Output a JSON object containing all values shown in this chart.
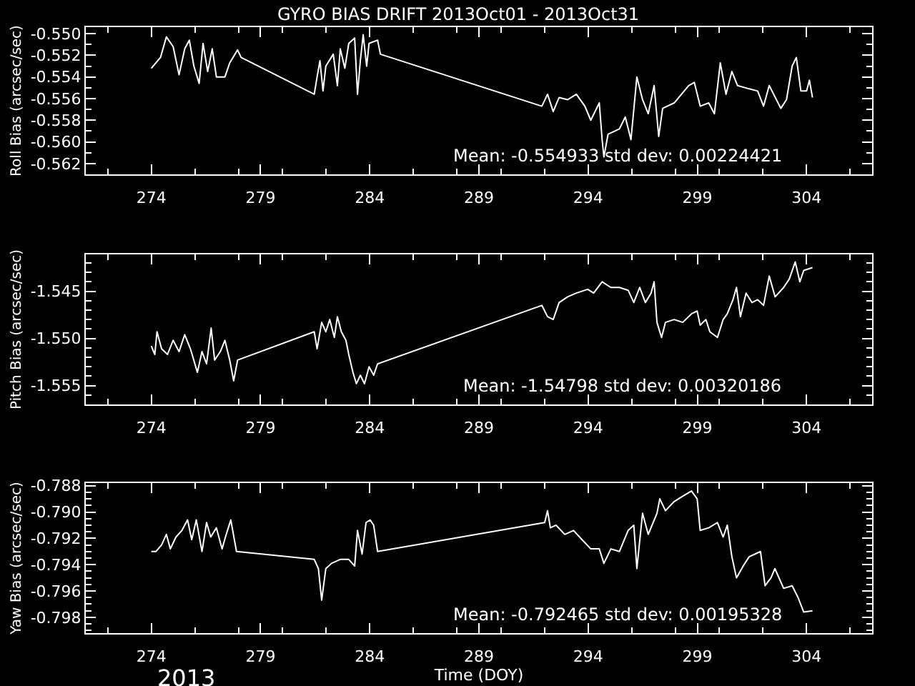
{
  "chart_data": [
    {
      "type": "line",
      "title": "GYRO BIAS DRIFT 2013Oct01 - 2013Oct31",
      "ylabel": "Roll Bias (arcsec/sec)",
      "xlim": [
        271,
        307
      ],
      "xticks": [
        274,
        279,
        284,
        289,
        294,
        299,
        304
      ],
      "ylim": [
        -0.563,
        -0.5494
      ],
      "yticks": [
        {
          "value": -0.55,
          "label": "-0.550"
        },
        {
          "value": -0.552,
          "label": "-0.552"
        },
        {
          "value": -0.554,
          "label": "-0.554"
        },
        {
          "value": -0.556,
          "label": "-0.556"
        },
        {
          "value": -0.558,
          "label": "-0.558"
        },
        {
          "value": -0.56,
          "label": "-0.560"
        },
        {
          "value": -0.562,
          "label": "-0.562"
        }
      ],
      "annotations": [
        "Mean: -0.554933 std dev: 0.00224421"
      ],
      "series": [
        {
          "color": "#ffffff",
          "x": [
            274.0,
            274.42,
            274.69,
            275.0,
            275.27,
            275.53,
            275.74,
            275.95,
            276.19,
            276.37,
            276.58,
            276.79,
            276.98,
            277.37,
            277.59,
            277.95,
            278.11,
            281.46,
            281.59,
            281.72,
            281.86,
            281.99,
            282.33,
            282.52,
            282.65,
            282.86,
            283.04,
            283.31,
            283.44,
            283.57,
            283.7,
            283.86,
            283.97,
            284.36,
            284.49,
            291.88,
            292.14,
            292.4,
            292.67,
            293.06,
            293.46,
            293.85,
            294.12,
            294.51,
            294.64,
            294.72,
            294.91,
            295.43,
            295.7,
            295.96,
            296.23,
            296.49,
            296.75,
            297.02,
            297.23,
            297.41,
            297.94,
            298.6,
            298.86,
            299.13,
            299.52,
            299.78,
            300.05,
            300.31,
            300.58,
            300.84,
            301.37,
            301.76,
            302.03,
            302.29,
            302.82,
            303.08,
            303.34,
            303.53,
            303.74,
            304.0,
            304.13,
            304.27
          ],
          "values": [
            -0.5532,
            -0.5522,
            -0.5503,
            -0.5512,
            -0.5538,
            -0.5514,
            -0.5506,
            -0.553,
            -0.5546,
            -0.5509,
            -0.5535,
            -0.5514,
            -0.554,
            -0.554,
            -0.5527,
            -0.5515,
            -0.5522,
            -0.5556,
            -0.554,
            -0.5525,
            -0.5553,
            -0.553,
            -0.5519,
            -0.5548,
            -0.5514,
            -0.5532,
            -0.5509,
            -0.5504,
            -0.5556,
            -0.5525,
            -0.5501,
            -0.553,
            -0.5509,
            -0.5506,
            -0.5519,
            -0.5567,
            -0.5556,
            -0.5572,
            -0.5559,
            -0.5561,
            -0.5556,
            -0.5567,
            -0.558,
            -0.5564,
            -0.5598,
            -0.5614,
            -0.5593,
            -0.5588,
            -0.5577,
            -0.5598,
            -0.554,
            -0.5561,
            -0.5574,
            -0.5548,
            -0.5595,
            -0.5569,
            -0.5564,
            -0.5548,
            -0.5545,
            -0.5567,
            -0.5564,
            -0.5574,
            -0.5527,
            -0.5556,
            -0.5535,
            -0.5548,
            -0.5551,
            -0.5553,
            -0.5567,
            -0.5548,
            -0.5569,
            -0.5561,
            -0.553,
            -0.5522,
            -0.5553,
            -0.5553,
            -0.5543,
            -0.5559
          ]
        }
      ]
    },
    {
      "type": "line",
      "ylabel": "Pitch Bias (arcsec/sec)",
      "xlim": [
        271,
        307
      ],
      "xticks": [
        274,
        279,
        284,
        289,
        294,
        299,
        304
      ],
      "ylim": [
        -1.557,
        -1.5411
      ],
      "yticks": [
        {
          "value": -1.545,
          "label": "-1.545"
        },
        {
          "value": -1.55,
          "label": "-1.550"
        },
        {
          "value": -1.555,
          "label": "-1.555"
        }
      ],
      "annotations": [
        "Mean: -1.54798 std dev: 0.00320186"
      ],
      "series": [
        {
          "color": "#ffffff",
          "x": [
            274.0,
            274.16,
            274.26,
            274.47,
            274.74,
            275.0,
            275.27,
            275.53,
            275.79,
            276.11,
            276.32,
            276.53,
            276.74,
            276.9,
            277.16,
            277.37,
            277.59,
            277.77,
            277.95,
            281.46,
            281.59,
            281.8,
            281.99,
            282.17,
            282.38,
            282.52,
            282.7,
            282.91,
            283.04,
            283.23,
            283.39,
            283.57,
            283.76,
            283.97,
            284.18,
            284.36,
            291.88,
            292.14,
            292.4,
            292.67,
            293.06,
            293.46,
            293.98,
            294.25,
            294.64,
            295.04,
            295.43,
            295.83,
            296.09,
            296.36,
            296.62,
            296.88,
            297.02,
            297.15,
            297.36,
            297.54,
            297.94,
            298.33,
            298.73,
            298.99,
            299.13,
            299.39,
            299.57,
            299.92,
            300.18,
            300.37,
            300.63,
            300.79,
            300.97,
            301.23,
            301.5,
            301.76,
            302.03,
            302.29,
            302.56,
            302.95,
            303.21,
            303.48,
            303.69,
            303.87,
            304.27
          ],
          "values": [
            -1.5508,
            -1.5517,
            -1.5493,
            -1.5511,
            -1.5517,
            -1.5502,
            -1.5514,
            -1.5496,
            -1.5511,
            -1.5536,
            -1.5514,
            -1.5527,
            -1.5489,
            -1.5523,
            -1.5514,
            -1.5502,
            -1.5523,
            -1.5545,
            -1.5523,
            -1.5493,
            -1.5511,
            -1.5483,
            -1.5493,
            -1.548,
            -1.5499,
            -1.5477,
            -1.5493,
            -1.5502,
            -1.5517,
            -1.5536,
            -1.5548,
            -1.5539,
            -1.5548,
            -1.553,
            -1.5539,
            -1.5527,
            -1.5465,
            -1.5477,
            -1.548,
            -1.5462,
            -1.5456,
            -1.5452,
            -1.5448,
            -1.5452,
            -1.544,
            -1.5446,
            -1.5446,
            -1.5449,
            -1.5462,
            -1.5446,
            -1.5462,
            -1.5452,
            -1.544,
            -1.5483,
            -1.5499,
            -1.5483,
            -1.548,
            -1.5483,
            -1.5474,
            -1.5471,
            -1.5486,
            -1.548,
            -1.5493,
            -1.5499,
            -1.548,
            -1.5474,
            -1.5459,
            -1.5446,
            -1.5477,
            -1.5452,
            -1.5462,
            -1.5459,
            -1.5465,
            -1.5434,
            -1.5456,
            -1.5446,
            -1.5437,
            -1.5419,
            -1.544,
            -1.5428,
            -1.5425
          ]
        }
      ]
    },
    {
      "type": "line",
      "ylabel": "Yaw Bias (arcsec/sec)",
      "xlabel": "Time (DOY)",
      "xlim": [
        271,
        307
      ],
      "xticks": [
        274,
        279,
        284,
        289,
        294,
        299,
        304
      ],
      "ylim": [
        -0.7992,
        -0.7878
      ],
      "yticks": [
        {
          "value": -0.788,
          "label": "-0.788"
        },
        {
          "value": -0.79,
          "label": "-0.790"
        },
        {
          "value": -0.792,
          "label": "-0.792"
        },
        {
          "value": -0.794,
          "label": "-0.794"
        },
        {
          "value": -0.796,
          "label": "-0.796"
        },
        {
          "value": -0.798,
          "label": "-0.798"
        }
      ],
      "annotations": [
        "Mean: -0.792465 std dev: 0.00195328",
        "2013"
      ],
      "series": [
        {
          "color": "#ffffff",
          "x": [
            274.0,
            274.21,
            274.47,
            274.69,
            274.87,
            275.13,
            275.4,
            275.66,
            275.85,
            276.06,
            276.32,
            276.53,
            276.72,
            276.98,
            277.24,
            277.43,
            277.64,
            277.9,
            281.46,
            281.65,
            281.8,
            281.99,
            282.25,
            282.65,
            283.04,
            283.31,
            283.44,
            283.65,
            283.83,
            284.02,
            284.18,
            284.36,
            292.01,
            292.14,
            292.27,
            292.53,
            292.93,
            293.33,
            293.72,
            294.12,
            294.51,
            294.72,
            295.04,
            295.43,
            295.83,
            296.09,
            296.23,
            296.49,
            296.75,
            297.15,
            297.28,
            297.54,
            297.94,
            298.33,
            298.73,
            298.99,
            299.13,
            299.52,
            299.92,
            300.18,
            300.37,
            300.58,
            300.79,
            301.1,
            301.37,
            301.63,
            301.89,
            302.1,
            302.37,
            302.55,
            302.95,
            303.34,
            303.61,
            303.87,
            304.27
          ],
          "values": [
            -0.793,
            -0.793,
            -0.7925,
            -0.7917,
            -0.7928,
            -0.7919,
            -0.7914,
            -0.7906,
            -0.7921,
            -0.7906,
            -0.793,
            -0.7908,
            -0.7919,
            -0.7912,
            -0.7928,
            -0.7917,
            -0.7906,
            -0.793,
            -0.7936,
            -0.7943,
            -0.7967,
            -0.7943,
            -0.7939,
            -0.7936,
            -0.7936,
            -0.7941,
            -0.7914,
            -0.7932,
            -0.7908,
            -0.7906,
            -0.791,
            -0.793,
            -0.7908,
            -0.7899,
            -0.7912,
            -0.791,
            -0.7917,
            -0.7914,
            -0.7921,
            -0.7928,
            -0.7928,
            -0.7939,
            -0.7928,
            -0.793,
            -0.7914,
            -0.791,
            -0.7943,
            -0.7901,
            -0.7917,
            -0.7901,
            -0.789,
            -0.7899,
            -0.7892,
            -0.7888,
            -0.7884,
            -0.789,
            -0.7914,
            -0.7912,
            -0.7908,
            -0.7919,
            -0.791,
            -0.7934,
            -0.795,
            -0.7941,
            -0.7934,
            -0.7932,
            -0.793,
            -0.7956,
            -0.795,
            -0.7943,
            -0.7958,
            -0.7956,
            -0.7965,
            -0.7976,
            -0.7975
          ]
        }
      ]
    }
  ]
}
